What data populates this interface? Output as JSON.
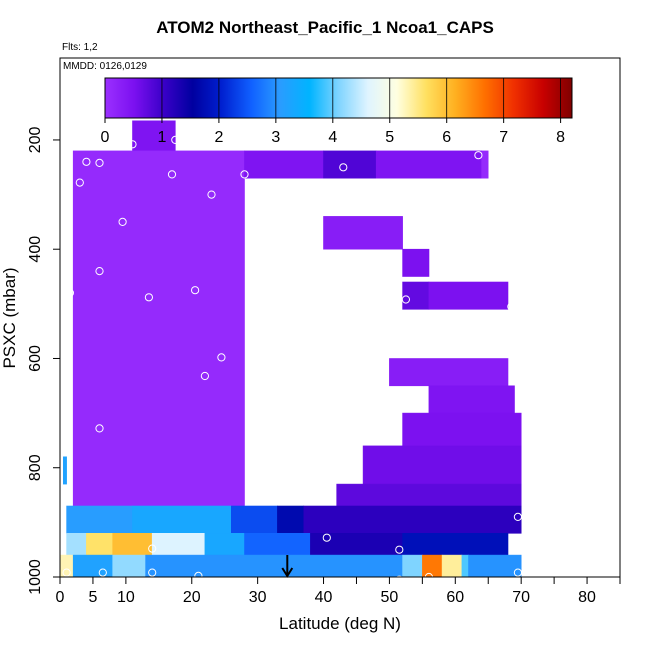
{
  "chart_data": {
    "type": "heatmap",
    "title": "ATOM2 Northeast_Pacific_1 Ncoa1_CAPS",
    "notes": [
      "Flts: 1,2",
      "MMDD: 0126,0129"
    ],
    "xlabel": "Latitude (deg N)",
    "ylabel": "PSXC (mbar)",
    "xlim": [
      0,
      85
    ],
    "ylim": [
      1000,
      50
    ],
    "y_inverted": true,
    "x_ticks": [
      0,
      5,
      10,
      20,
      30,
      40,
      50,
      60,
      70,
      80
    ],
    "x_minor_ticks": [
      45,
      55,
      65,
      75,
      85
    ],
    "y_ticks": [
      200,
      400,
      600,
      800,
      1000
    ],
    "colorbar": {
      "range": [
        0,
        8.2
      ],
      "ticks": [
        0,
        1,
        2,
        3,
        4,
        5,
        6,
        7,
        8
      ],
      "colors": [
        "#9b30ff",
        "#7b10f0",
        "#3a00c8",
        "#0000a0",
        "#0020d0",
        "#1060ff",
        "#2a9cff",
        "#00b4ff",
        "#7fd4ff",
        "#dff4ff",
        "#ffffe0",
        "#ffe060",
        "#ffb020",
        "#ff7000",
        "#f03000",
        "#c80000",
        "#800000"
      ]
    },
    "marker_latitude": 34.5,
    "cells": [
      {
        "lat": [
          11,
          17.5
        ],
        "p": [
          165,
          220
        ],
        "value": 0.45
      },
      {
        "lat": [
          2,
          28
        ],
        "p": [
          220,
          870
        ],
        "value": 0.1
      },
      {
        "lat": [
          28,
          40
        ],
        "p": [
          220,
          270
        ],
        "value": 0.45
      },
      {
        "lat": [
          40,
          48
        ],
        "p": [
          220,
          270
        ],
        "value": 0.85
      },
      {
        "lat": [
          48,
          64
        ],
        "p": [
          220,
          270
        ],
        "value": 0.45
      },
      {
        "lat": [
          64,
          65
        ],
        "p": [
          220,
          270
        ],
        "value": 0.1
      },
      {
        "lat": [
          40,
          52
        ],
        "p": [
          340,
          400
        ],
        "value": 0.3
      },
      {
        "lat": [
          52,
          56
        ],
        "p": [
          400,
          450
        ],
        "value": 0.5
      },
      {
        "lat": [
          52,
          56
        ],
        "p": [
          460,
          510
        ],
        "value": 0.7
      },
      {
        "lat": [
          56,
          68
        ],
        "p": [
          460,
          510
        ],
        "value": 0.5
      },
      {
        "lat": [
          50,
          68
        ],
        "p": [
          600,
          650
        ],
        "value": 0.3
      },
      {
        "lat": [
          56,
          69
        ],
        "p": [
          650,
          700
        ],
        "value": 0.45
      },
      {
        "lat": [
          52,
          70
        ],
        "p": [
          700,
          760
        ],
        "value": 0.5
      },
      {
        "lat": [
          46,
          70
        ],
        "p": [
          760,
          830
        ],
        "value": 0.6
      },
      {
        "lat": [
          42,
          70
        ],
        "p": [
          830,
          870
        ],
        "value": 0.75
      },
      {
        "lat": [
          0.5,
          1
        ],
        "p": [
          780,
          830
        ],
        "value": 3.2
      },
      {
        "lat": [
          1,
          11
        ],
        "p": [
          870,
          920
        ],
        "value": 3.1
      },
      {
        "lat": [
          11,
          26
        ],
        "p": [
          870,
          920
        ],
        "value": 3.3
      },
      {
        "lat": [
          26,
          33
        ],
        "p": [
          870,
          920
        ],
        "value": 2.4
      },
      {
        "lat": [
          33,
          37
        ],
        "p": [
          870,
          920
        ],
        "value": 1.7
      },
      {
        "lat": [
          37,
          70
        ],
        "p": [
          870,
          920
        ],
        "value": 1.15
      },
      {
        "lat": [
          1,
          4
        ],
        "p": [
          920,
          960
        ],
        "value": 4.3
      },
      {
        "lat": [
          4,
          8
        ],
        "p": [
          920,
          960
        ],
        "value": 5.6
      },
      {
        "lat": [
          8,
          14
        ],
        "p": [
          920,
          960
        ],
        "value": 6.0
      },
      {
        "lat": [
          14,
          22
        ],
        "p": [
          920,
          960
        ],
        "value": 4.6
      },
      {
        "lat": [
          22,
          28
        ],
        "p": [
          920,
          960
        ],
        "value": 3.3
      },
      {
        "lat": [
          28,
          38
        ],
        "p": [
          920,
          960
        ],
        "value": 2.6
      },
      {
        "lat": [
          38,
          52
        ],
        "p": [
          920,
          960
        ],
        "value": 1.3
      },
      {
        "lat": [
          52,
          68
        ],
        "p": [
          920,
          960
        ],
        "value": 1.8
      },
      {
        "lat": [
          0,
          2
        ],
        "p": [
          960,
          1000
        ],
        "value": 5.3
      },
      {
        "lat": [
          2,
          8
        ],
        "p": [
          960,
          1000
        ],
        "value": 3.2
      },
      {
        "lat": [
          8,
          13
        ],
        "p": [
          960,
          1000
        ],
        "value": 4.2
      },
      {
        "lat": [
          13,
          52
        ],
        "p": [
          960,
          1000
        ],
        "value": 3.0
      },
      {
        "lat": [
          52,
          55
        ],
        "p": [
          960,
          1000
        ],
        "value": 4.1
      },
      {
        "lat": [
          55,
          58
        ],
        "p": [
          960,
          1000
        ],
        "value": 6.6
      },
      {
        "lat": [
          58,
          61
        ],
        "p": [
          960,
          1000
        ],
        "value": 5.4
      },
      {
        "lat": [
          61,
          62
        ],
        "p": [
          960,
          1000
        ],
        "value": 3.9
      },
      {
        "lat": [
          62,
          70
        ],
        "p": [
          960,
          1000
        ],
        "value": 3.0
      }
    ],
    "sample_points": [
      [
        11,
        208
      ],
      [
        17.5,
        200
      ],
      [
        4,
        240
      ],
      [
        6,
        242
      ],
      [
        3,
        278
      ],
      [
        17,
        263
      ],
      [
        28,
        263
      ],
      [
        23,
        300
      ],
      [
        9.5,
        350
      ],
      [
        37,
        278
      ],
      [
        39.5,
        278
      ],
      [
        43,
        250
      ],
      [
        49,
        288
      ],
      [
        63.5,
        228
      ],
      [
        53,
        375
      ],
      [
        54,
        375
      ],
      [
        1.5,
        480
      ],
      [
        6,
        440
      ],
      [
        13.5,
        488
      ],
      [
        20.5,
        475
      ],
      [
        38.5,
        445
      ],
      [
        41,
        472
      ],
      [
        45.5,
        482
      ],
      [
        50.5,
        480
      ],
      [
        52.5,
        492
      ],
      [
        68.5,
        505
      ],
      [
        1,
        580
      ],
      [
        24.5,
        598
      ],
      [
        22,
        632
      ],
      [
        46.5,
        585
      ],
      [
        6,
        728
      ],
      [
        45,
        725
      ],
      [
        0.5,
        858
      ],
      [
        40.5,
        860
      ],
      [
        69.5,
        890
      ],
      [
        40.5,
        928
      ],
      [
        14,
        948
      ],
      [
        51.5,
        950
      ],
      [
        1,
        992
      ],
      [
        6.5,
        992
      ],
      [
        14,
        992
      ],
      [
        21,
        998
      ],
      [
        46,
        1008
      ],
      [
        51.5,
        1005
      ],
      [
        56,
        1000
      ],
      [
        69.5,
        992
      ]
    ]
  }
}
